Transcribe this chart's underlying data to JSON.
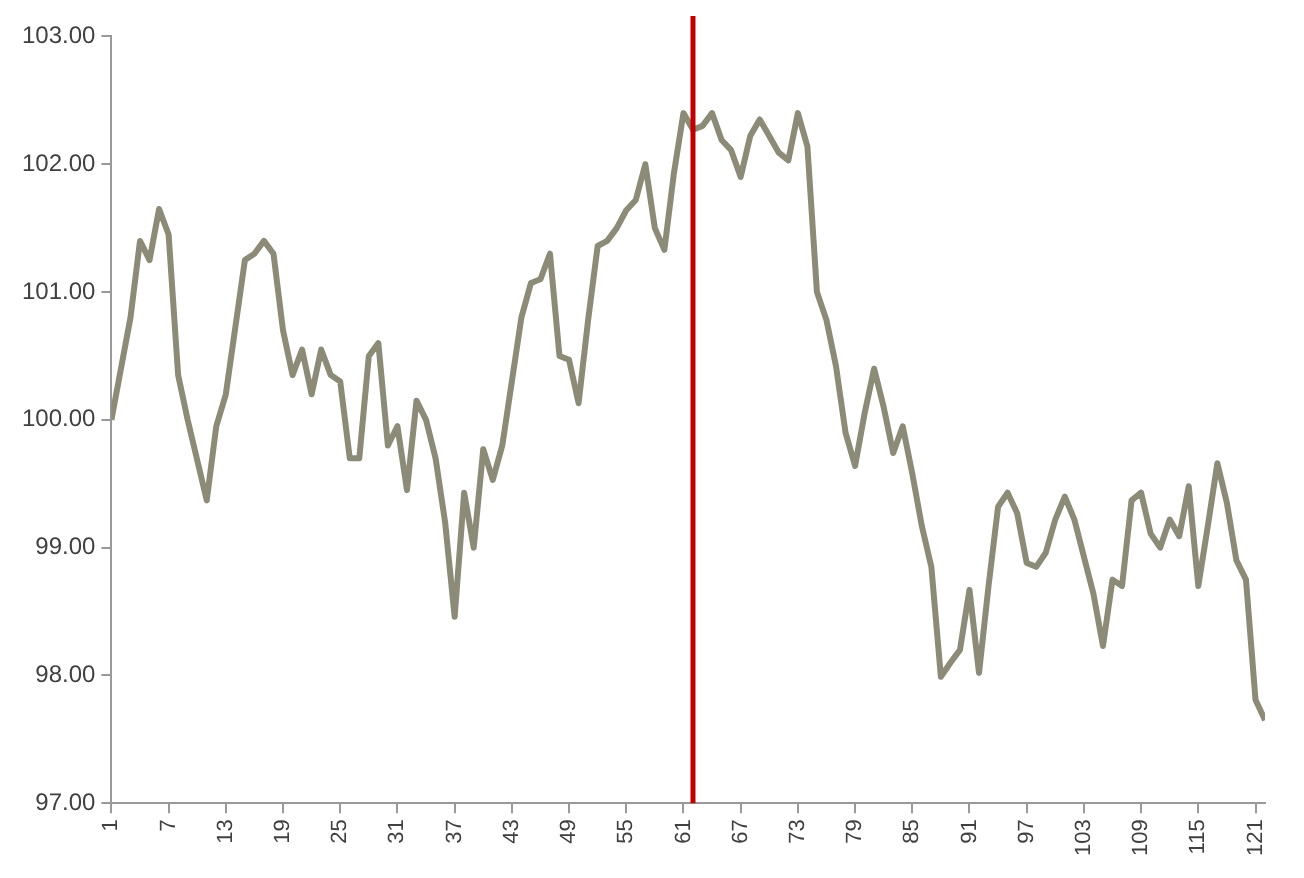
{
  "chart_data": {
    "type": "line",
    "series": [
      {
        "color": "#8c8b78",
        "x": [
          1,
          2,
          3,
          4,
          5,
          6,
          7,
          8,
          9,
          11,
          12,
          13,
          15,
          16,
          17,
          18,
          19,
          20,
          21,
          22,
          23,
          24,
          25,
          26,
          27,
          28,
          29,
          30,
          31,
          32,
          33,
          34,
          35,
          36,
          37,
          38,
          39,
          40,
          41,
          42,
          43,
          44,
          45,
          46,
          47,
          48,
          49,
          50,
          51,
          52,
          53,
          54,
          55,
          56,
          57,
          58,
          59,
          60,
          61,
          62,
          63,
          64,
          65,
          66,
          67,
          68,
          69,
          70,
          71,
          72,
          73,
          74,
          75,
          76,
          77,
          78,
          79,
          80,
          81,
          82,
          83,
          84,
          85,
          86,
          87,
          88,
          89,
          90,
          91,
          92,
          93,
          94,
          95,
          96,
          97,
          98,
          99,
          100,
          101,
          102,
          104,
          105,
          106,
          107,
          108,
          109,
          110,
          111,
          112,
          113,
          114,
          115,
          116,
          117,
          118,
          119,
          120,
          121,
          122
        ],
        "values": [
          100.0,
          100.4,
          100.8,
          101.4,
          101.25,
          101.65,
          101.45,
          100.35,
          100.0,
          99.37,
          99.95,
          100.2,
          101.25,
          101.3,
          101.4,
          101.3,
          100.7,
          100.35,
          100.55,
          100.2,
          100.55,
          100.35,
          100.3,
          99.7,
          99.7,
          100.5,
          100.6,
          99.8,
          99.95,
          99.45,
          100.15,
          100.0,
          99.7,
          99.2,
          98.46,
          99.43,
          99.0,
          99.77,
          99.53,
          99.8,
          100.3,
          100.8,
          101.07,
          101.1,
          101.3,
          100.5,
          100.47,
          100.13,
          100.78,
          101.36,
          101.4,
          101.5,
          101.64,
          101.72,
          102.0,
          101.5,
          101.33,
          101.93,
          102.4,
          102.27,
          102.3,
          102.4,
          102.19,
          102.11,
          101.9,
          102.22,
          102.35,
          102.22,
          102.09,
          102.03,
          102.4,
          102.14,
          101.0,
          100.78,
          100.42,
          99.9,
          99.64,
          100.05,
          100.4,
          100.1,
          99.74,
          99.95,
          99.58,
          99.17,
          98.85,
          97.99,
          98.1,
          98.2,
          98.67,
          98.02,
          98.7,
          99.32,
          99.43,
          99.27,
          98.88,
          98.85,
          98.96,
          99.22,
          99.4,
          99.22,
          98.64,
          98.23,
          98.75,
          98.7,
          99.37,
          99.43,
          99.11,
          99.0,
          99.22,
          99.09,
          99.48,
          98.7,
          99.17,
          99.66,
          99.35,
          98.9,
          98.75,
          97.81,
          97.65
        ]
      }
    ],
    "xlim": [
      1,
      122
    ],
    "xticks": [
      1,
      7,
      13,
      19,
      25,
      31,
      37,
      43,
      49,
      55,
      61,
      67,
      73,
      79,
      85,
      91,
      97,
      103,
      109,
      115,
      121
    ],
    "ylim": [
      97,
      103
    ],
    "yticks": [
      {
        "value": 97,
        "label": "97.00"
      },
      {
        "value": 98,
        "label": "98.00"
      },
      {
        "value": 99,
        "label": "99.00"
      },
      {
        "value": 100,
        "label": "100.00"
      },
      {
        "value": 101,
        "label": "101.00"
      },
      {
        "value": 102,
        "label": "102.00"
      },
      {
        "value": 103,
        "label": "103.00"
      }
    ],
    "ref_lines": [
      {
        "axis": "x",
        "value": 62,
        "color": "#c00000"
      }
    ],
    "grid": false,
    "legend": false,
    "marker": "none",
    "line_style": "solid"
  }
}
